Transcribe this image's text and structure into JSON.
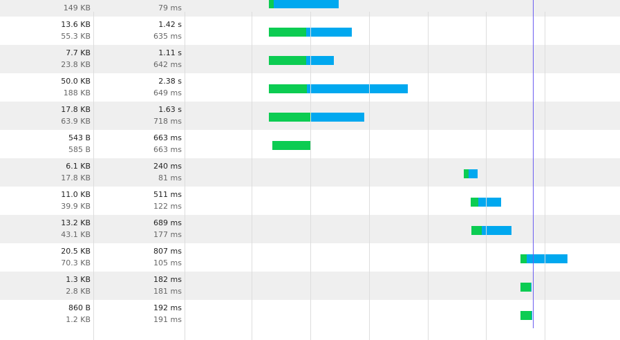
{
  "colors": {
    "waiting": "#0ccc52",
    "receiving": "#01a8ef",
    "marker": "#6a5cf0"
  },
  "timeline": {
    "start_ms": 0,
    "end_ms": 6500,
    "marker_ms": 4500
  },
  "requests": [
    {
      "transferred": "",
      "size": "149 KB",
      "duration": "",
      "latency": "79 ms",
      "start_ms": 0,
      "wait_ms": 79,
      "total_ms": 1200
    },
    {
      "transferred": "13.6 KB",
      "size": "55.3 KB",
      "duration": "1.42 s",
      "latency": "635 ms",
      "start_ms": 0,
      "wait_ms": 635,
      "total_ms": 1420
    },
    {
      "transferred": "7.7 KB",
      "size": "23.8 KB",
      "duration": "1.11 s",
      "latency": "642 ms",
      "start_ms": 0,
      "wait_ms": 642,
      "total_ms": 1110
    },
    {
      "transferred": "50.0 KB",
      "size": "188 KB",
      "duration": "2.38 s",
      "latency": "649 ms",
      "start_ms": 0,
      "wait_ms": 649,
      "total_ms": 2380
    },
    {
      "transferred": "17.8 KB",
      "size": "63.9 KB",
      "duration": "1.63 s",
      "latency": "718 ms",
      "start_ms": 0,
      "wait_ms": 718,
      "total_ms": 1630
    },
    {
      "transferred": "543 B",
      "size": "585 B",
      "duration": "663 ms",
      "latency": "663 ms",
      "start_ms": 60,
      "wait_ms": 663,
      "total_ms": 663
    },
    {
      "transferred": "6.1 KB",
      "size": "17.8 KB",
      "duration": "240 ms",
      "latency": "81 ms",
      "start_ms": 3340,
      "wait_ms": 81,
      "total_ms": 240
    },
    {
      "transferred": "11.0 KB",
      "size": "39.9 KB",
      "duration": "511 ms",
      "latency": "122 ms",
      "start_ms": 3460,
      "wait_ms": 122,
      "total_ms": 511
    },
    {
      "transferred": "13.2 KB",
      "size": "43.1 KB",
      "duration": "689 ms",
      "latency": "177 ms",
      "start_ms": 3470,
      "wait_ms": 177,
      "total_ms": 689
    },
    {
      "transferred": "20.5 KB",
      "size": "70.3 KB",
      "duration": "807 ms",
      "latency": "105 ms",
      "start_ms": 4310,
      "wait_ms": 105,
      "total_ms": 807
    },
    {
      "transferred": "1.3 KB",
      "size": "2.8 KB",
      "duration": "182 ms",
      "latency": "181 ms",
      "start_ms": 4310,
      "wait_ms": 181,
      "total_ms": 182
    },
    {
      "transferred": "860 B",
      "size": "1.2 KB",
      "duration": "192 ms",
      "latency": "191 ms",
      "start_ms": 4310,
      "wait_ms": 191,
      "total_ms": 192
    }
  ]
}
